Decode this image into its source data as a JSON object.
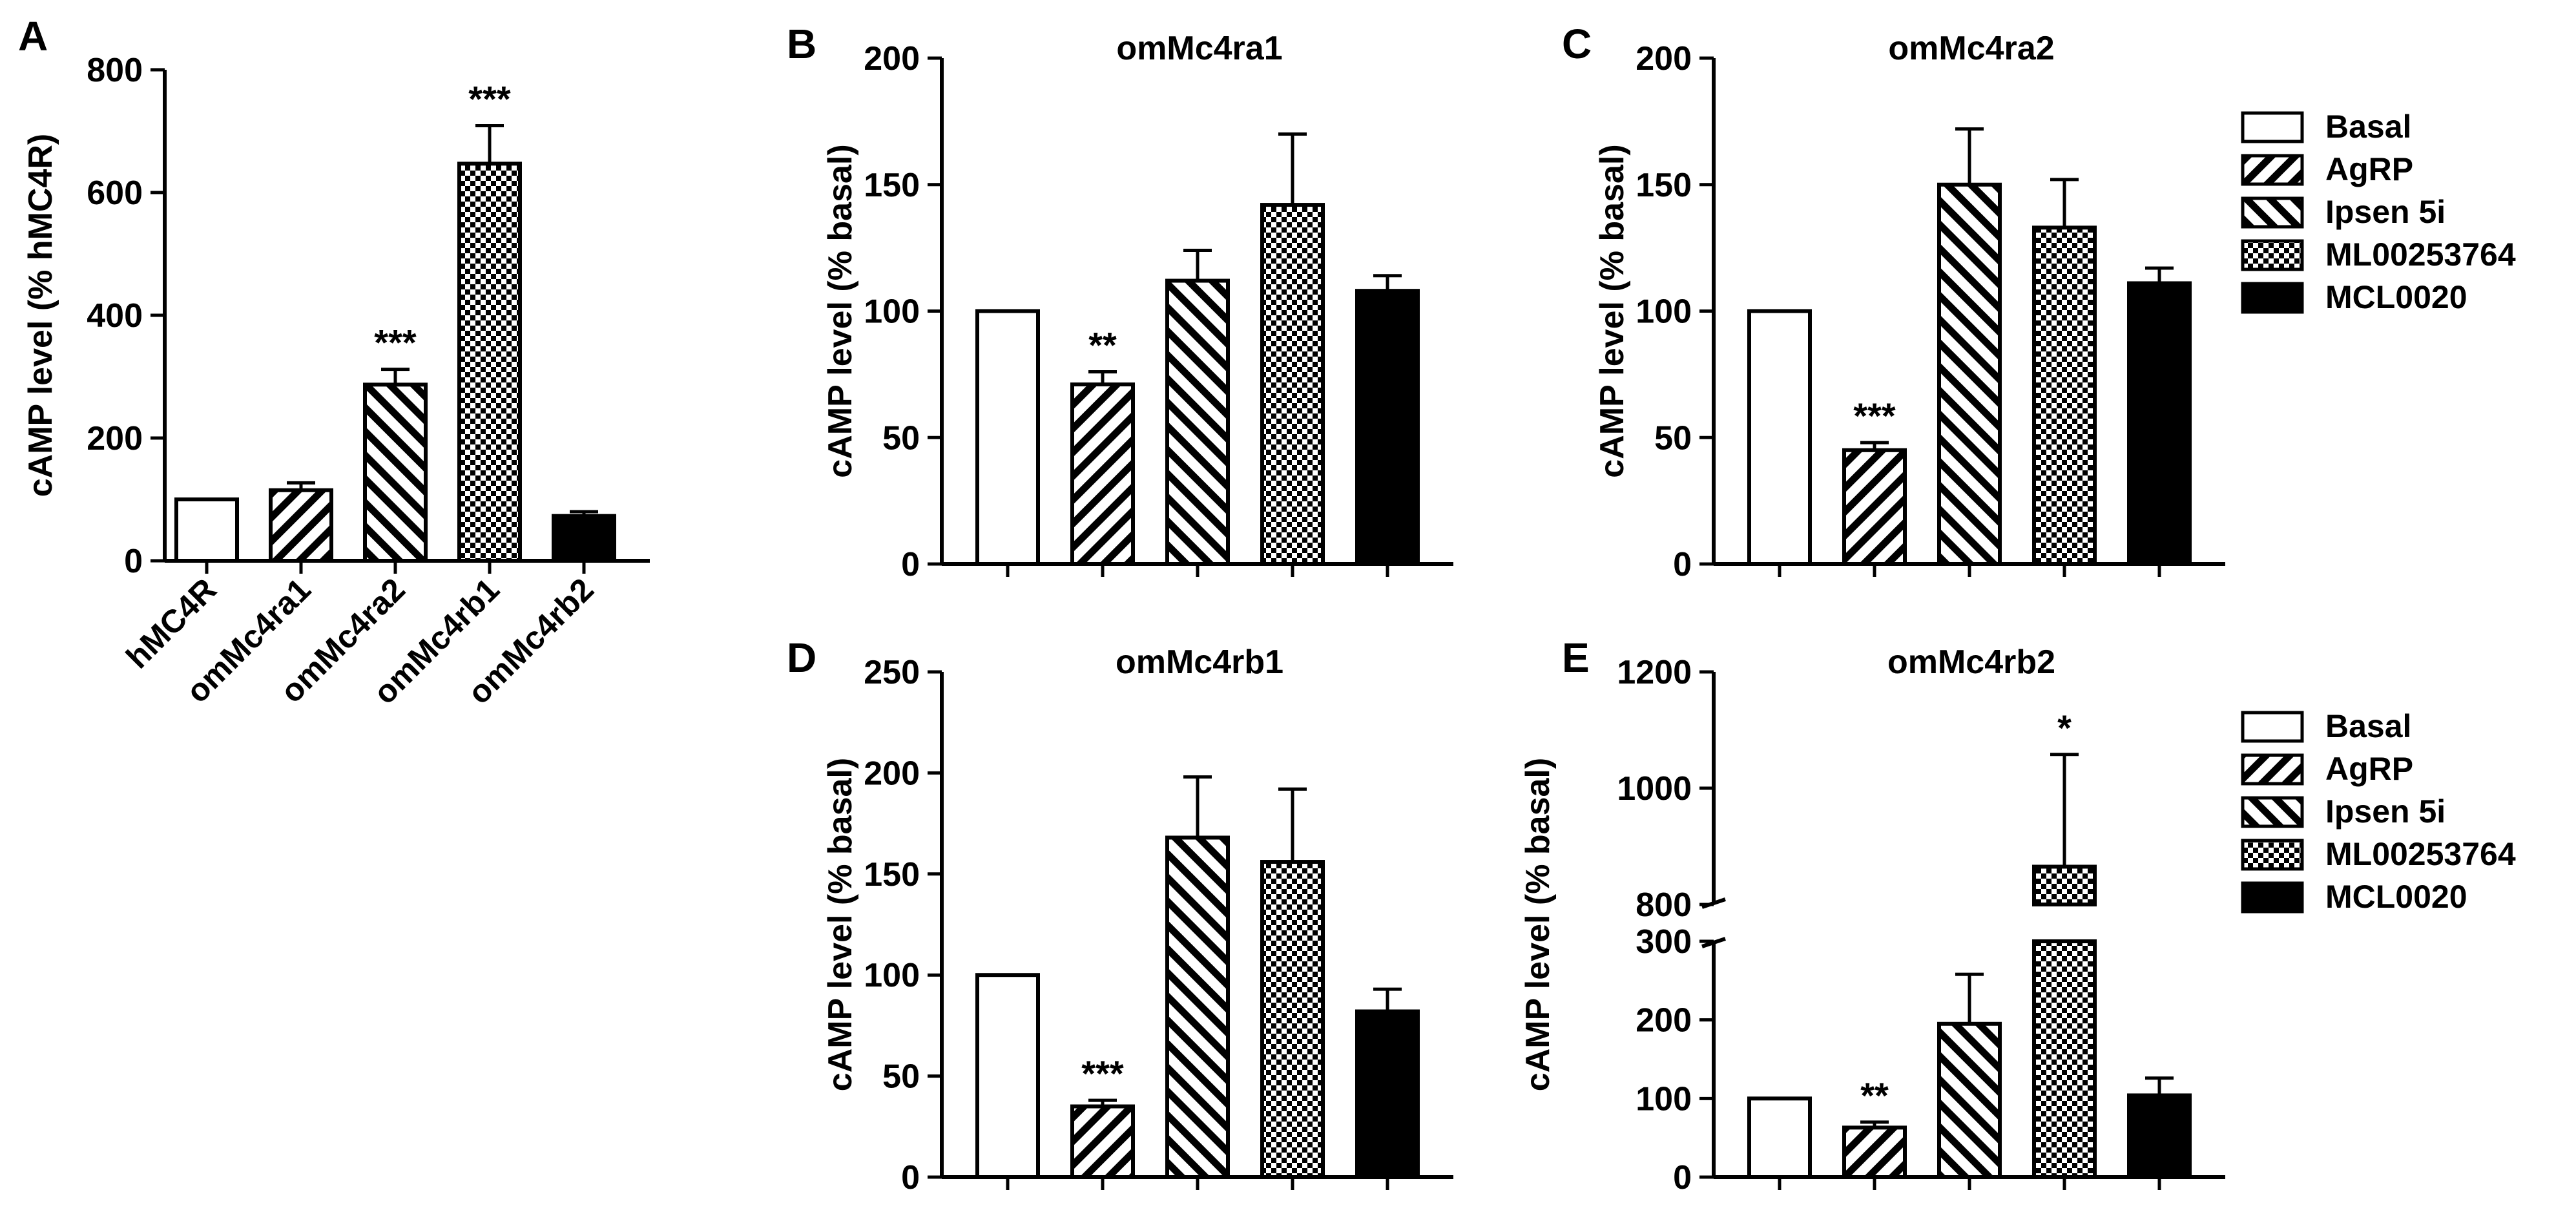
{
  "colors": {
    "ink": "#000000",
    "paper": "#ffffff"
  },
  "legend_entries": [
    "Basal",
    "AgRP",
    "Ipsen 5i",
    "ML00253764",
    "MCL0020"
  ],
  "legend_styles": [
    "open",
    "diag-right",
    "diag-left",
    "checker",
    "solid"
  ],
  "chart_data": [
    {
      "panel": "A",
      "type": "bar",
      "title": "",
      "ylabel": "cAMP level (% hMC4R)",
      "ylim": [
        0,
        800
      ],
      "yticks": [
        0,
        200,
        400,
        600,
        800
      ],
      "categories": [
        "hMC4R",
        "omMc4ra1",
        "omMc4ra2",
        "omMc4rb1",
        "omMc4rb2"
      ],
      "show_category_labels": true,
      "values": [
        100,
        115,
        287,
        647,
        73
      ],
      "errors": [
        0,
        12,
        25,
        62,
        7
      ],
      "patterns": [
        "open",
        "diag-right",
        "diag-left",
        "checker",
        "solid"
      ],
      "significance": [
        "",
        "",
        "***",
        "***",
        ""
      ]
    },
    {
      "panel": "B",
      "type": "bar",
      "title": "omMc4ra1",
      "ylabel": "cAMP level (% basal)",
      "ylim": [
        0,
        200
      ],
      "yticks": [
        0,
        50,
        100,
        150,
        200
      ],
      "categories": [
        "Basal",
        "AgRP",
        "Ipsen 5i",
        "ML00253764",
        "MCL0020"
      ],
      "show_category_labels": false,
      "values": [
        100,
        71,
        112,
        142,
        108
      ],
      "errors": [
        0,
        5,
        12,
        28,
        6
      ],
      "patterns": [
        "open",
        "diag-right",
        "diag-left",
        "checker",
        "solid"
      ],
      "significance": [
        "",
        "**",
        "",
        "",
        ""
      ]
    },
    {
      "panel": "C",
      "type": "bar",
      "title": "omMc4ra2",
      "ylabel": "cAMP level (% basal)",
      "ylim": [
        0,
        200
      ],
      "yticks": [
        0,
        50,
        100,
        150,
        200
      ],
      "categories": [
        "Basal",
        "AgRP",
        "Ipsen 5i",
        "ML00253764",
        "MCL0020"
      ],
      "show_category_labels": false,
      "values": [
        100,
        45,
        150,
        133,
        111
      ],
      "errors": [
        0,
        3,
        22,
        19,
        6
      ],
      "patterns": [
        "open",
        "diag-right",
        "diag-left",
        "checker",
        "solid"
      ],
      "significance": [
        "",
        "***",
        "",
        "",
        ""
      ],
      "legend": true
    },
    {
      "panel": "D",
      "type": "bar",
      "title": "omMc4rb1",
      "ylabel": "cAMP level (% basal)",
      "ylim": [
        0,
        250
      ],
      "yticks": [
        0,
        50,
        100,
        150,
        200,
        250
      ],
      "categories": [
        "Basal",
        "AgRP",
        "Ipsen 5i",
        "ML00253764",
        "MCL0020"
      ],
      "show_category_labels": false,
      "values": [
        100,
        35,
        168,
        156,
        82
      ],
      "errors": [
        0,
        3,
        30,
        36,
        11
      ],
      "patterns": [
        "open",
        "diag-right",
        "diag-left",
        "checker",
        "solid"
      ],
      "significance": [
        "",
        "***",
        "",
        "",
        ""
      ]
    },
    {
      "panel": "E",
      "type": "bar",
      "title": "omMc4rb2",
      "ylabel": "cAMP level (% basal)",
      "broken_axis": {
        "lower": [
          0,
          300
        ],
        "upper": [
          800,
          1200
        ]
      },
      "yticks": [
        0,
        100,
        200,
        300,
        800,
        1000,
        1200
      ],
      "categories": [
        "Basal",
        "AgRP",
        "Ipsen 5i",
        "ML00253764",
        "MCL0020"
      ],
      "show_category_labels": false,
      "values": [
        100,
        63,
        195,
        865,
        104
      ],
      "errors": [
        0,
        7,
        63,
        193,
        22
      ],
      "patterns": [
        "open",
        "diag-right",
        "diag-left",
        "checker",
        "solid"
      ],
      "significance": [
        "",
        "**",
        "",
        "*",
        ""
      ],
      "legend": true
    }
  ]
}
